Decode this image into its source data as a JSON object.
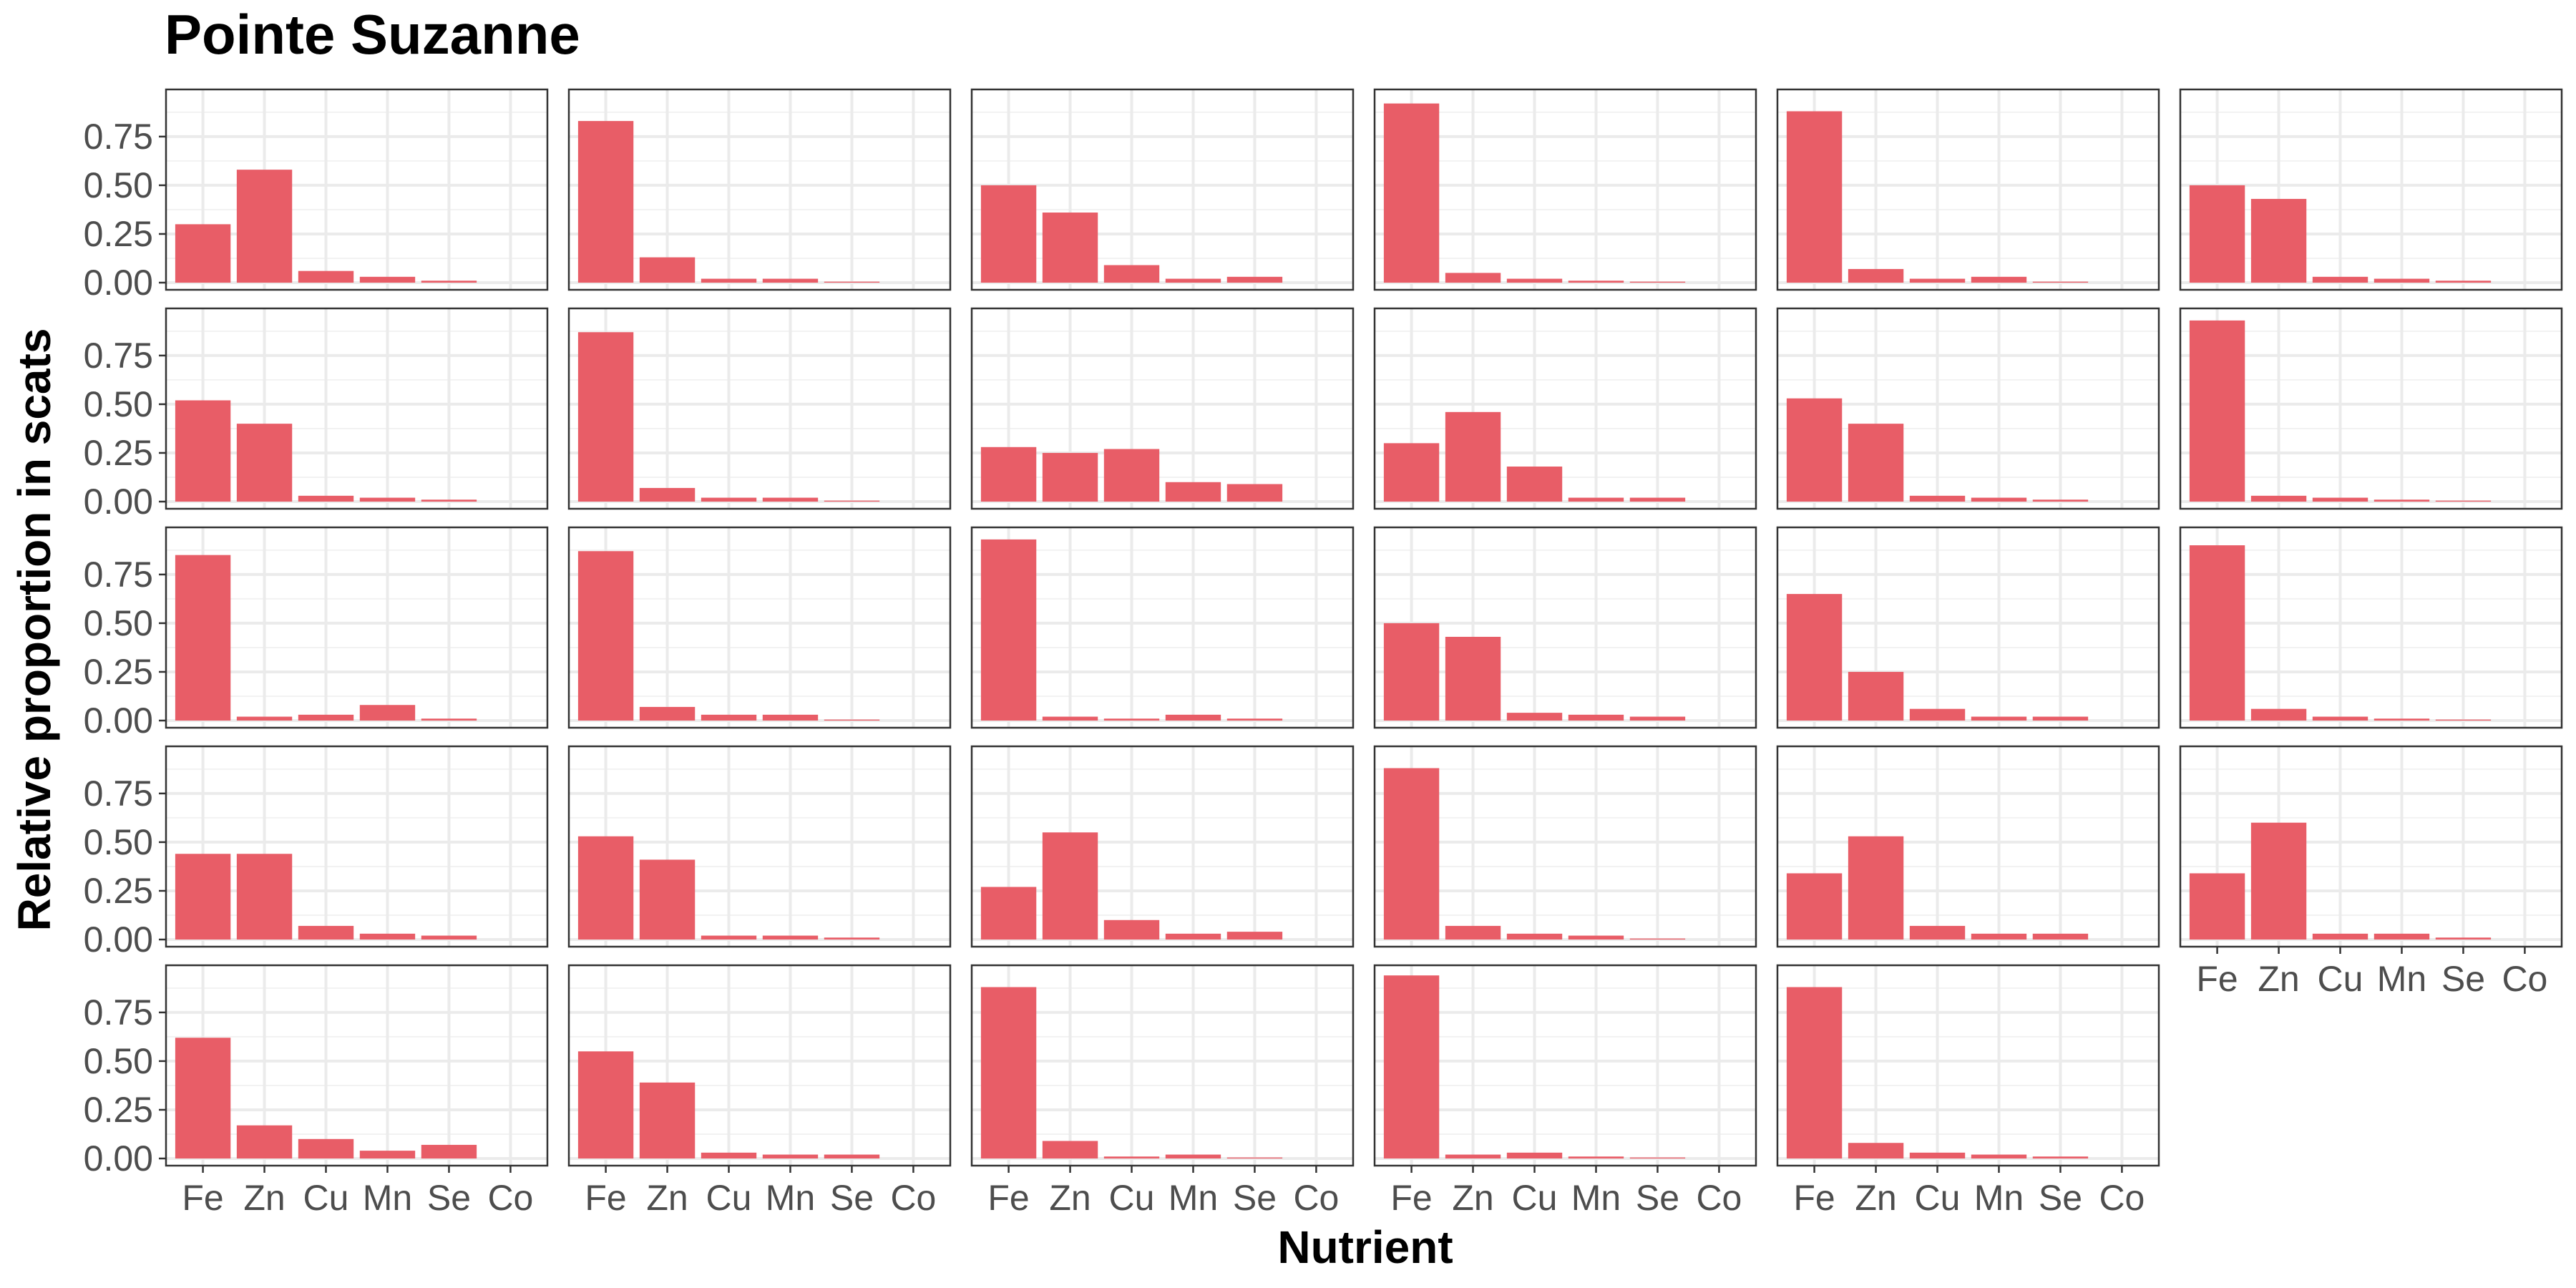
{
  "chart_data": {
    "type": "bar",
    "title": "Pointe Suzanne",
    "xlabel": "Nutrient",
    "ylabel": "Relative proportion in scats",
    "categories": [
      "Fe",
      "Zn",
      "Cu",
      "Mn",
      "Se",
      "Co"
    ],
    "ylim": [
      0,
      1
    ],
    "yticks": [
      "0.00",
      "0.25",
      "0.50",
      "0.75"
    ],
    "grid": true,
    "layout": "facet grid, 6 columns x 5 rows, 29 panels",
    "bar_color": "#E85D67",
    "panels": [
      [
        0.3,
        0.58,
        0.06,
        0.03,
        0.01,
        0.0
      ],
      [
        0.83,
        0.13,
        0.02,
        0.02,
        0.005,
        0.0
      ],
      [
        0.5,
        0.36,
        0.09,
        0.02,
        0.03,
        0.0
      ],
      [
        0.92,
        0.05,
        0.02,
        0.01,
        0.005,
        0.0
      ],
      [
        0.88,
        0.07,
        0.02,
        0.03,
        0.005,
        0.0
      ],
      [
        0.5,
        0.43,
        0.03,
        0.02,
        0.01,
        0.0
      ],
      [
        0.52,
        0.4,
        0.03,
        0.02,
        0.01,
        0.0
      ],
      [
        0.87,
        0.07,
        0.02,
        0.02,
        0.005,
        0.0
      ],
      [
        0.28,
        0.25,
        0.27,
        0.1,
        0.09,
        0.0
      ],
      [
        0.3,
        0.46,
        0.18,
        0.02,
        0.02,
        0.0
      ],
      [
        0.53,
        0.4,
        0.03,
        0.02,
        0.01,
        0.0
      ],
      [
        0.93,
        0.03,
        0.02,
        0.01,
        0.005,
        0.0
      ],
      [
        0.85,
        0.02,
        0.03,
        0.08,
        0.01,
        0.0
      ],
      [
        0.87,
        0.07,
        0.03,
        0.03,
        0.005,
        0.0
      ],
      [
        0.93,
        0.02,
        0.01,
        0.03,
        0.01,
        0.0
      ],
      [
        0.5,
        0.43,
        0.04,
        0.03,
        0.02,
        0.0
      ],
      [
        0.65,
        0.25,
        0.06,
        0.02,
        0.02,
        0.0
      ],
      [
        0.9,
        0.06,
        0.02,
        0.01,
        0.005,
        0.0
      ],
      [
        0.44,
        0.44,
        0.07,
        0.03,
        0.02,
        0.0
      ],
      [
        0.53,
        0.41,
        0.02,
        0.02,
        0.01,
        0.0
      ],
      [
        0.27,
        0.55,
        0.1,
        0.03,
        0.04,
        0.0
      ],
      [
        0.88,
        0.07,
        0.03,
        0.02,
        0.005,
        0.0
      ],
      [
        0.34,
        0.53,
        0.07,
        0.03,
        0.03,
        0.0
      ],
      [
        0.34,
        0.6,
        0.03,
        0.03,
        0.01,
        0.0
      ],
      [
        0.62,
        0.17,
        0.1,
        0.04,
        0.07,
        0.0
      ],
      [
        0.55,
        0.39,
        0.03,
        0.02,
        0.02,
        0.0
      ],
      [
        0.88,
        0.09,
        0.01,
        0.02,
        0.005,
        0.0
      ],
      [
        0.94,
        0.02,
        0.03,
        0.01,
        0.005,
        0.0
      ],
      [
        0.88,
        0.08,
        0.03,
        0.02,
        0.01,
        0.0
      ]
    ]
  }
}
